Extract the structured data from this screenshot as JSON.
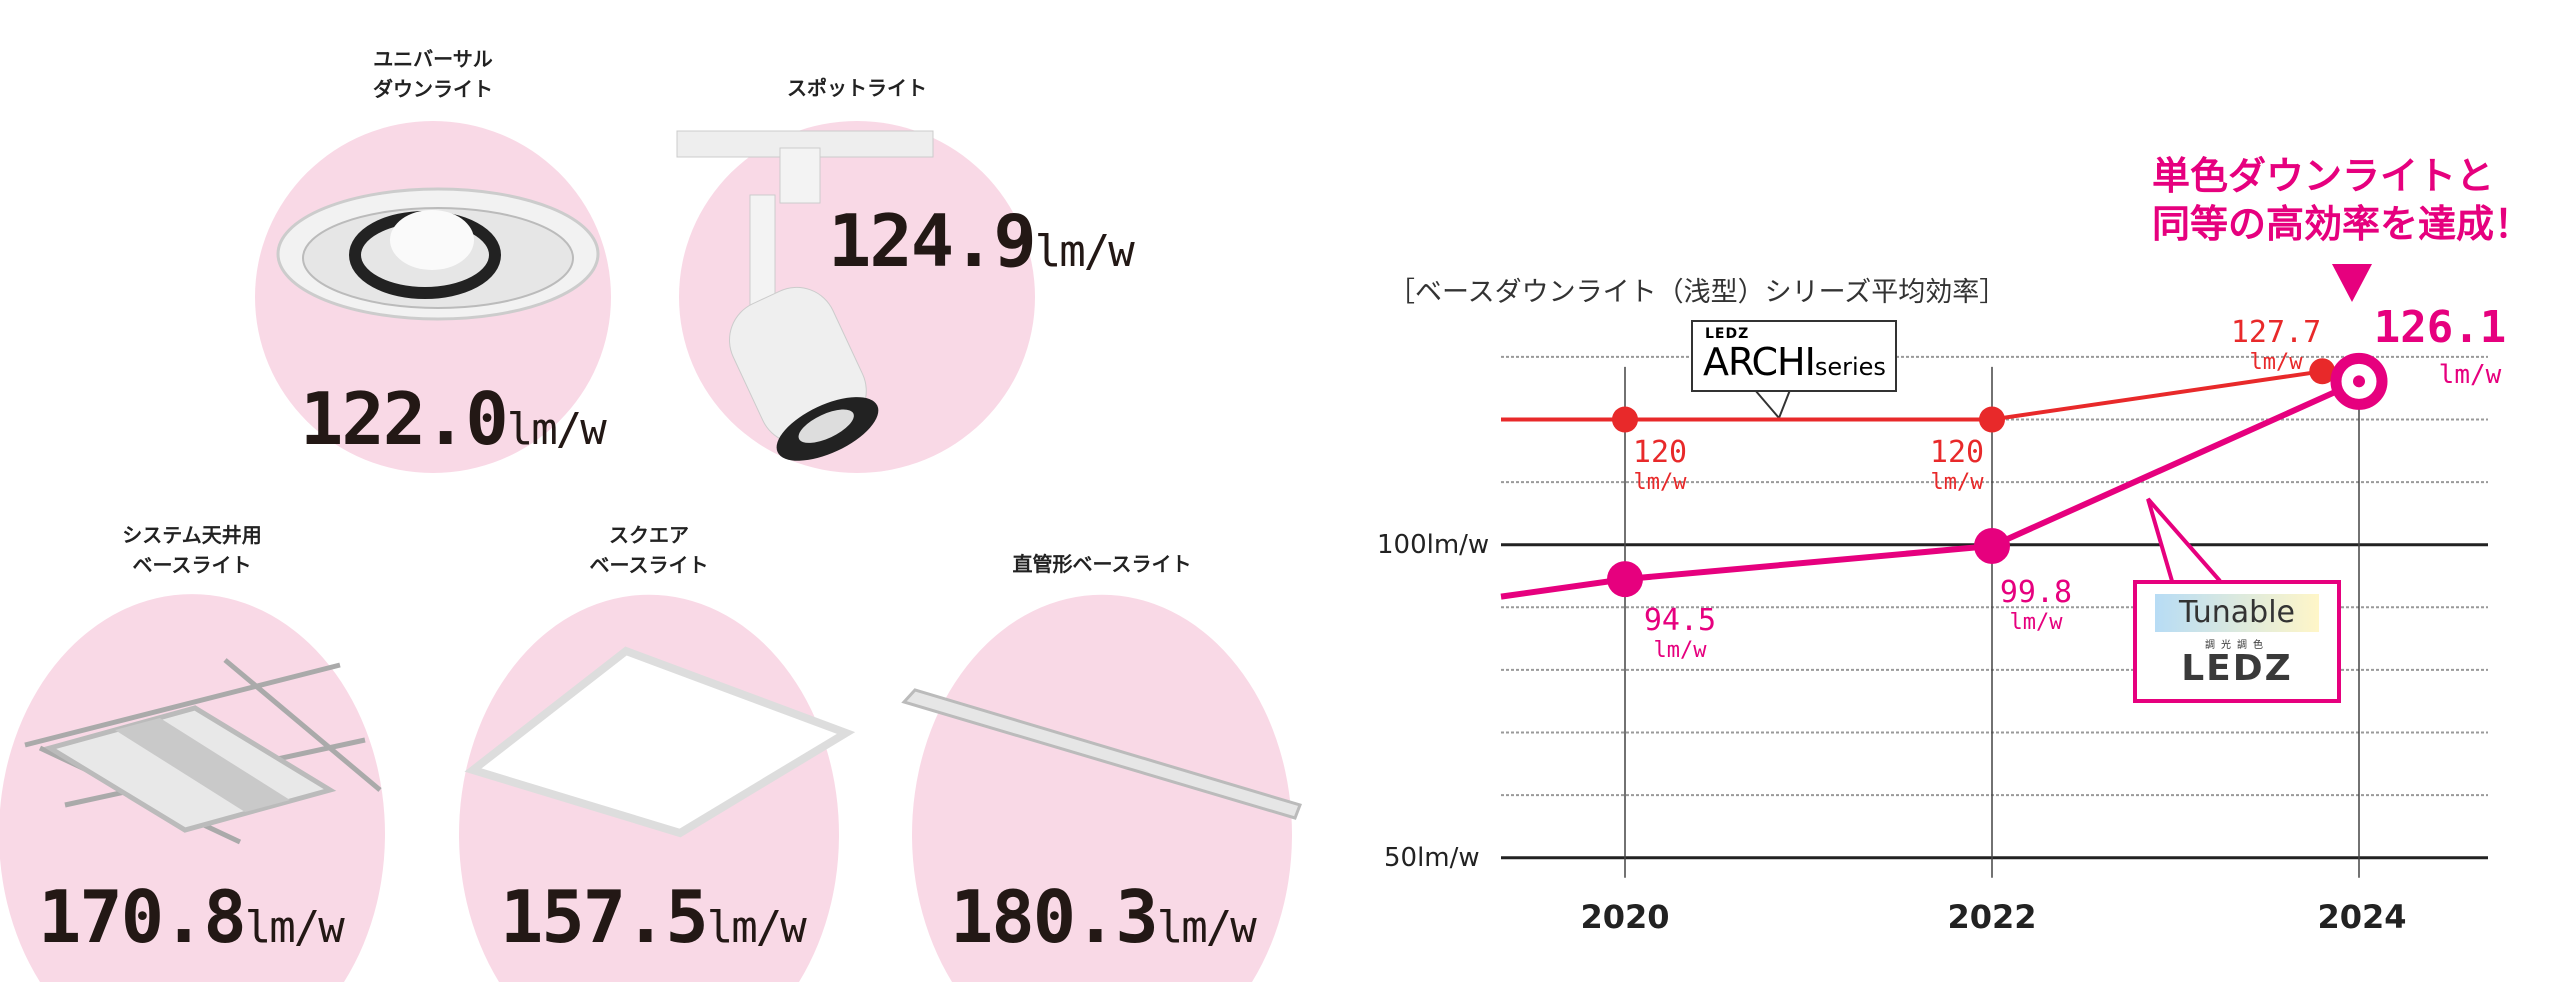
{
  "products": [
    {
      "label_lines": [
        "ユニバーサル",
        "ダウンライト"
      ],
      "value": "122.0",
      "unit": "lm/w"
    },
    {
      "label_lines": [
        "スポットライト"
      ],
      "value": "124.9",
      "unit": "lm/w"
    },
    {
      "label_lines": [
        "システム天井用",
        "ベースライト"
      ],
      "value": "170.8",
      "unit": "lm/w"
    },
    {
      "label_lines": [
        "スクエア",
        "ベースライト"
      ],
      "value": "157.5",
      "unit": "lm/w"
    },
    {
      "label_lines": [
        "直管形ベースライト"
      ],
      "value": "180.3",
      "unit": "lm/w"
    }
  ],
  "colors": {
    "circle": "#f9d9e6",
    "magenta": "#e6007e",
    "red": "#e8292a",
    "grid": "#999999",
    "axis": "#222222"
  },
  "chart_data": {
    "type": "line",
    "title": "［ベースダウンライト（浅型）シリーズ平均効率］",
    "headline": [
      "単色ダウンライトと",
      "同等の高効率を達成！"
    ],
    "x_ticks": [
      "2020",
      "2022",
      "2024"
    ],
    "y_ticks": [
      {
        "value": 100,
        "label": "100lm/w"
      },
      {
        "value": 50,
        "label": "50lm/w"
      }
    ],
    "gridlines": [
      50,
      60,
      70,
      80,
      90,
      100,
      110,
      120,
      130
    ],
    "ylim": [
      50,
      130
    ],
    "grid": true,
    "series": [
      {
        "name": "LEDZ ARCHI series",
        "logo_small": "LEDZ",
        "logo_main": "ARCHI",
        "logo_suffix": "series",
        "color": "#e8292a",
        "points": [
          {
            "x": 2020,
            "y": 120,
            "label": "120",
            "unit": "lm/w"
          },
          {
            "x": 2022,
            "y": 120,
            "label": "120",
            "unit": "lm/w"
          },
          {
            "x": 2023.8,
            "y": 127.7,
            "label": "127.7",
            "unit": "lm/w"
          }
        ]
      },
      {
        "name": "Tunable 調光調色 LEDZ",
        "logo_main": "Tunable",
        "logo_sub": "調光調色",
        "logo_brand": "LEDZ",
        "color": "#e6007e",
        "points": [
          {
            "x": 2020,
            "y": 94.5,
            "label": "94.5",
            "unit": "lm/w"
          },
          {
            "x": 2022,
            "y": 99.8,
            "label": "99.8",
            "unit": "lm/w"
          },
          {
            "x": 2024,
            "y": 126.1,
            "label": "126.1",
            "unit": "lm/w"
          }
        ]
      }
    ]
  }
}
